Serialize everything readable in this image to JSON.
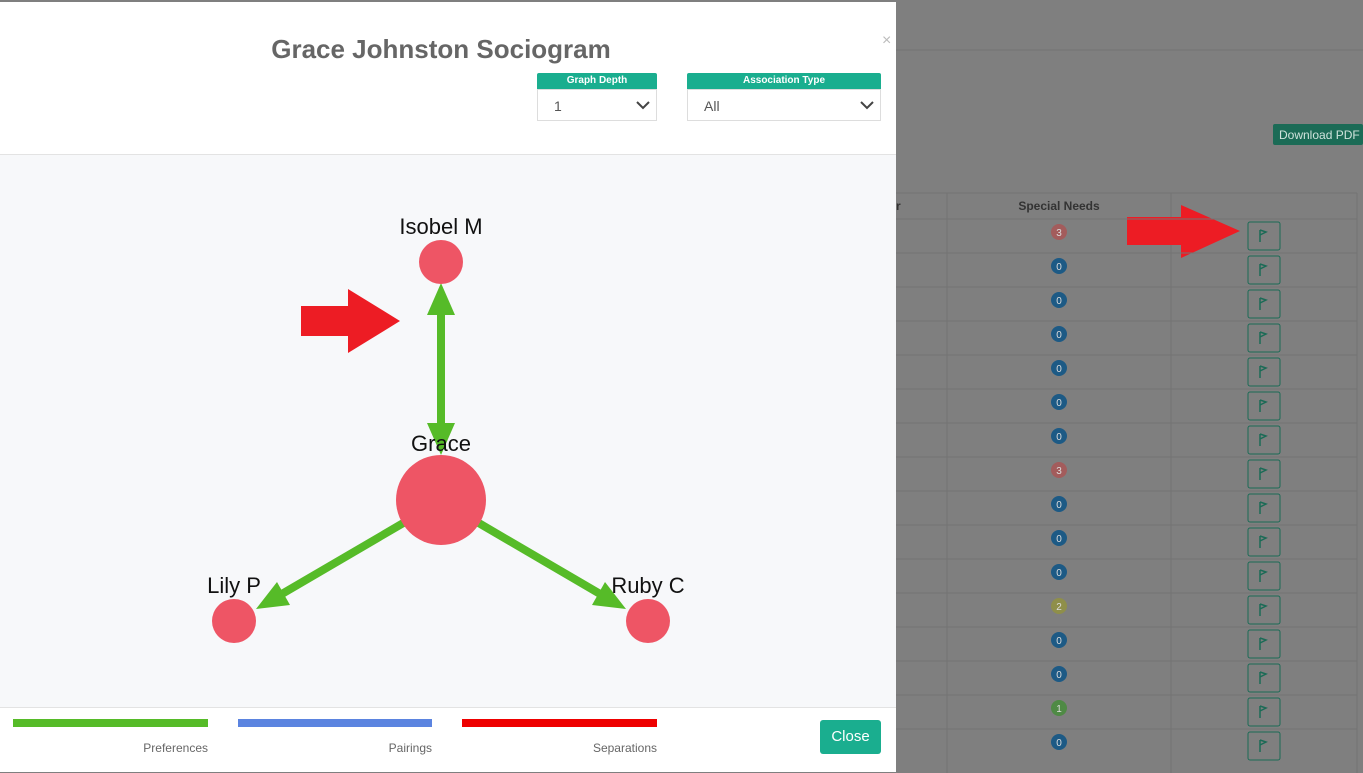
{
  "modal": {
    "title": "Grace Johnston Sociogram",
    "close_x": "×",
    "filters": [
      {
        "label": "Graph Depth",
        "value": "1"
      },
      {
        "label": "Association Type",
        "value": "All"
      }
    ],
    "close_button": "Close"
  },
  "graph": {
    "nodes": [
      {
        "label": "Isobel M"
      },
      {
        "label": "Grace"
      },
      {
        "label": "Lily P"
      },
      {
        "label": "Ruby C"
      }
    ]
  },
  "legend": [
    "Preferences",
    "Pairings",
    "Separations"
  ],
  "background": {
    "download_button": "Download PDF",
    "table": {
      "headers": [
        "r",
        "Special Needs"
      ],
      "special_needs": [
        3,
        0,
        0,
        0,
        0,
        0,
        0,
        3,
        0,
        0,
        0,
        2,
        0,
        0,
        1,
        0
      ],
      "badge_colors": [
        "#a35c5c",
        "#1d5a85",
        "#1d5a85",
        "#1d5a85",
        "#1d5a85",
        "#1d5a85",
        "#1d5a85",
        "#a35c5c",
        "#1d5a85",
        "#1d5a85",
        "#1d5a85",
        "#8f8f4a",
        "#1d5a85",
        "#1d5a85",
        "#4f8a45",
        "#1d5a85"
      ]
    }
  }
}
